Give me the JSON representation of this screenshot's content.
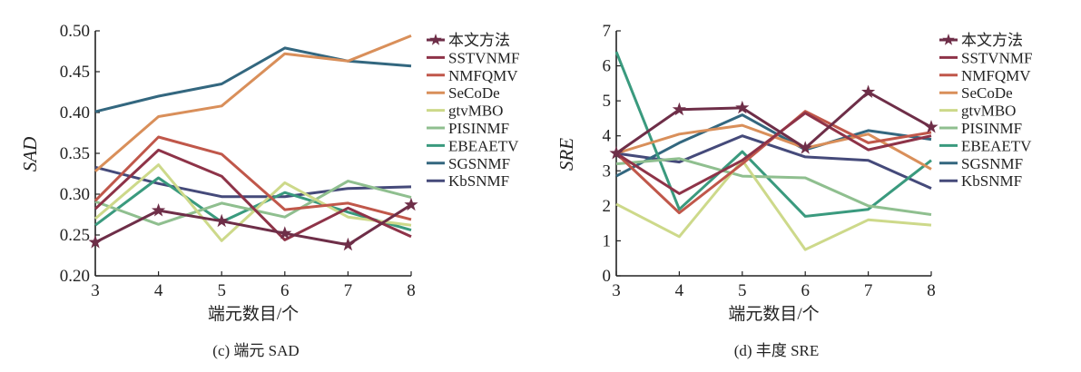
{
  "chart_data": [
    {
      "type": "line",
      "id": "sad",
      "caption": "(c) 端元 SAD",
      "xlabel": "端元数目/个",
      "ylabel": "SAD",
      "x": [
        3,
        4,
        5,
        6,
        7,
        8
      ],
      "xticks": [
        "3",
        "4",
        "5",
        "6",
        "7",
        "8"
      ],
      "xlim": [
        3,
        8
      ],
      "ylim": [
        0.2,
        0.5
      ],
      "yticks": [
        "0.20",
        "0.25",
        "0.30",
        "0.35",
        "0.40",
        "0.45",
        "0.50"
      ],
      "grid": false,
      "legend_position": "right",
      "series": [
        {
          "name": "本文方法",
          "color": "#6e2e48",
          "marker": "star",
          "values": [
            0.241,
            0.28,
            0.267,
            0.252,
            0.238,
            0.287
          ]
        },
        {
          "name": "SSTVNMF",
          "color": "#8e3348",
          "marker": "none",
          "values": [
            0.282,
            0.354,
            0.322,
            0.244,
            0.283,
            0.248
          ]
        },
        {
          "name": "NMFQMV",
          "color": "#c0574a",
          "marker": "none",
          "values": [
            0.292,
            0.37,
            0.349,
            0.281,
            0.289,
            0.269
          ]
        },
        {
          "name": "SeCoDe",
          "color": "#d98f5a",
          "marker": "none",
          "values": [
            0.328,
            0.395,
            0.408,
            0.472,
            0.463,
            0.494
          ]
        },
        {
          "name": "gtvMBO",
          "color": "#cdd98a",
          "marker": "none",
          "values": [
            0.27,
            0.336,
            0.243,
            0.314,
            0.272,
            0.262
          ]
        },
        {
          "name": "PISINMF",
          "color": "#8fbf8f",
          "marker": "none",
          "values": [
            0.291,
            0.263,
            0.289,
            0.272,
            0.316,
            0.296
          ]
        },
        {
          "name": "EBEAETV",
          "color": "#3a9a7e",
          "marker": "none",
          "values": [
            0.262,
            0.32,
            0.266,
            0.302,
            0.278,
            0.256
          ]
        },
        {
          "name": "SGSNMF",
          "color": "#33677f",
          "marker": "none",
          "values": [
            0.401,
            0.42,
            0.435,
            0.479,
            0.463,
            0.457
          ]
        },
        {
          "name": "KbSNMF",
          "color": "#454a7a",
          "marker": "none",
          "values": [
            0.333,
            0.313,
            0.297,
            0.297,
            0.307,
            0.309
          ]
        }
      ]
    },
    {
      "type": "line",
      "id": "sre",
      "caption": "(d) 丰度 SRE",
      "xlabel": "端元数目/个",
      "ylabel": "SRE",
      "x": [
        3,
        4,
        5,
        6,
        7,
        8
      ],
      "xticks": [
        "3",
        "4",
        "5",
        "6",
        "7",
        "8"
      ],
      "xlim": [
        3,
        8
      ],
      "ylim": [
        0,
        7
      ],
      "yticks": [
        "0",
        "1",
        "2",
        "3",
        "4",
        "5",
        "6",
        "7"
      ],
      "grid": false,
      "legend_position": "right",
      "series": [
        {
          "name": "本文方法",
          "color": "#6e2e48",
          "marker": "star",
          "values": [
            3.5,
            4.75,
            4.8,
            3.65,
            5.25,
            4.25
          ]
        },
        {
          "name": "SSTVNMF",
          "color": "#8e3348",
          "marker": "none",
          "values": [
            3.5,
            2.35,
            3.3,
            4.65,
            3.6,
            4.0
          ]
        },
        {
          "name": "NMFQMV",
          "color": "#c0574a",
          "marker": "none",
          "values": [
            3.5,
            1.8,
            3.2,
            4.7,
            3.8,
            4.1
          ]
        },
        {
          "name": "SeCoDe",
          "color": "#d98f5a",
          "marker": "none",
          "values": [
            3.5,
            4.05,
            4.3,
            3.65,
            4.05,
            3.05
          ]
        },
        {
          "name": "gtvMBO",
          "color": "#cdd98a",
          "marker": "none",
          "values": [
            2.05,
            1.12,
            3.3,
            0.75,
            1.6,
            1.45
          ]
        },
        {
          "name": "PISINMF",
          "color": "#8fbf8f",
          "marker": "none",
          "values": [
            3.2,
            3.35,
            2.85,
            2.8,
            2.0,
            1.75
          ]
        },
        {
          "name": "EBEAETV",
          "color": "#3a9a7e",
          "marker": "none",
          "values": [
            6.4,
            1.9,
            3.55,
            1.7,
            1.9,
            3.3
          ]
        },
        {
          "name": "SGSNMF",
          "color": "#33677f",
          "marker": "none",
          "values": [
            2.85,
            3.8,
            4.6,
            3.6,
            4.15,
            3.9
          ]
        },
        {
          "name": "KbSNMF",
          "color": "#454a7a",
          "marker": "none",
          "values": [
            3.5,
            3.25,
            4.0,
            3.4,
            3.3,
            2.5
          ]
        }
      ]
    }
  ]
}
